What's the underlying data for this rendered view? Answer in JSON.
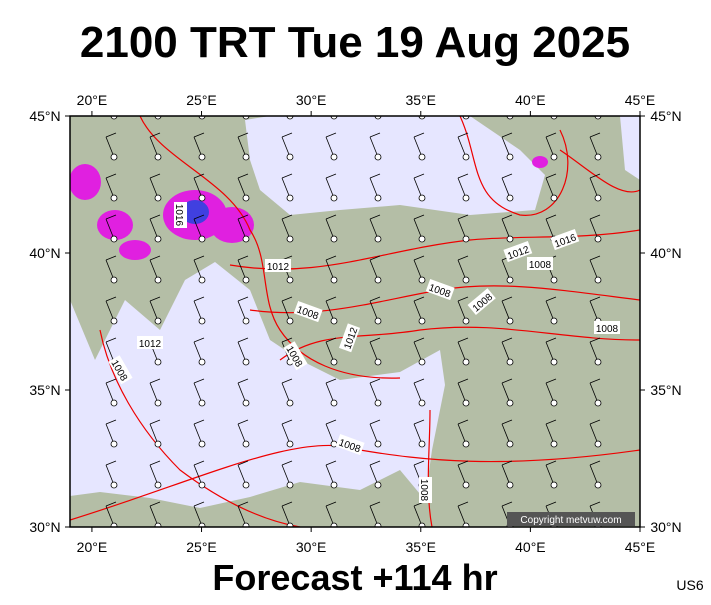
{
  "header": {
    "title": "2100 TRT Tue 19 Aug 2025"
  },
  "map": {
    "lon_ticks": [
      {
        "value": 20,
        "label": "20°E"
      },
      {
        "value": 25,
        "label": "25°E"
      },
      {
        "value": 30,
        "label": "30°E"
      },
      {
        "value": 35,
        "label": "35°E"
      },
      {
        "value": 40,
        "label": "40°E"
      },
      {
        "value": 45,
        "label": "45°E"
      }
    ],
    "lat_ticks": [
      {
        "value": 45,
        "label": "45°N"
      },
      {
        "value": 40,
        "label": "40°N"
      },
      {
        "value": 35,
        "label": "35°N"
      },
      {
        "value": 30,
        "label": "30°N"
      }
    ],
    "lon_range": [
      19,
      45
    ],
    "lat_range": [
      30,
      45
    ],
    "isobar_labels": [
      "1016",
      "1012",
      "1012",
      "1008",
      "1008",
      "1008",
      "1012",
      "1008",
      "1008",
      "1008",
      "1012",
      "1008",
      "1008",
      "1008",
      "1016"
    ],
    "copyright": "Copyright metvuw.com"
  },
  "footer": {
    "forecast": "Forecast +114 hr",
    "code": "US6"
  }
}
